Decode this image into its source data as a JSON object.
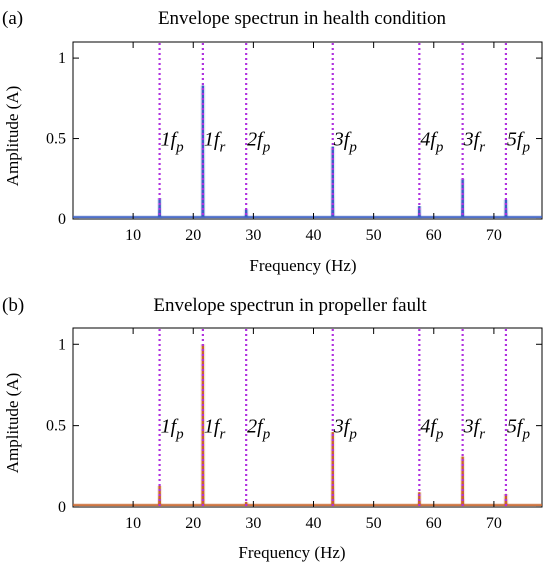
{
  "chart_data": [
    {
      "type": "line",
      "panel_label": "(a)",
      "title": "Envelope spectrun in health condition",
      "xlabel": "Frequency (Hz)",
      "ylabel": "Amplitude (A)",
      "xlim": [
        0,
        78
      ],
      "ylim": [
        0,
        1.1
      ],
      "xticks": [
        10,
        20,
        30,
        40,
        50,
        60,
        70
      ],
      "yticks": [
        0,
        0.5,
        1
      ],
      "ytick_labels": [
        "0",
        "0.5",
        "1"
      ],
      "grid": false,
      "series": [
        {
          "color": "#3a5fc4",
          "baseline": 0.012,
          "peaks": [
            {
              "x": 14.4,
              "y": 0.13
            },
            {
              "x": 21.6,
              "y": 0.83
            },
            {
              "x": 28.8,
              "y": 0.06
            },
            {
              "x": 43.2,
              "y": 0.45
            },
            {
              "x": 57.6,
              "y": 0.08
            },
            {
              "x": 64.8,
              "y": 0.25
            },
            {
              "x": 72.0,
              "y": 0.12
            }
          ]
        }
      ],
      "marker_lines": {
        "color": "#b030e0",
        "positions": [
          14.4,
          21.6,
          28.8,
          43.2,
          57.6,
          64.8,
          72.0
        ]
      },
      "annotations": [
        {
          "x": 14.4,
          "y": 0.5,
          "main": "1f",
          "sub": "p"
        },
        {
          "x": 21.6,
          "y": 0.5,
          "main": "1f",
          "sub": "r"
        },
        {
          "x": 28.8,
          "y": 0.5,
          "main": "2f",
          "sub": "p"
        },
        {
          "x": 43.2,
          "y": 0.5,
          "main": "3f",
          "sub": "p"
        },
        {
          "x": 57.6,
          "y": 0.5,
          "main": "4f",
          "sub": "p"
        },
        {
          "x": 64.8,
          "y": 0.5,
          "main": "3f",
          "sub": "r"
        },
        {
          "x": 72.0,
          "y": 0.5,
          "main": "5f",
          "sub": "p"
        }
      ]
    },
    {
      "type": "line",
      "panel_label": "(b)",
      "title": "Envelope spectrun in propeller fault",
      "xlabel": "Frequency (Hz)",
      "ylabel": "Amplitude (A)",
      "xlim": [
        0,
        78
      ],
      "ylim": [
        0,
        1.1
      ],
      "xticks": [
        10,
        20,
        30,
        40,
        50,
        60,
        70
      ],
      "yticks": [
        0,
        0.5,
        1
      ],
      "ytick_labels": [
        "0",
        "0.5",
        "1"
      ],
      "grid": false,
      "series": [
        {
          "color": "#c8642a",
          "baseline": 0.012,
          "peaks": [
            {
              "x": 14.4,
              "y": 0.13
            },
            {
              "x": 21.6,
              "y": 1.0
            },
            {
              "x": 28.8,
              "y": 0.03
            },
            {
              "x": 43.2,
              "y": 0.46
            },
            {
              "x": 57.6,
              "y": 0.09
            },
            {
              "x": 64.8,
              "y": 0.31
            },
            {
              "x": 72.0,
              "y": 0.08
            }
          ]
        }
      ],
      "marker_lines": {
        "color": "#b030e0",
        "positions": [
          14.4,
          21.6,
          28.8,
          43.2,
          57.6,
          64.8,
          72.0
        ]
      },
      "annotations": [
        {
          "x": 14.4,
          "y": 0.5,
          "main": "1f",
          "sub": "p"
        },
        {
          "x": 21.6,
          "y": 0.5,
          "main": "1f",
          "sub": "r"
        },
        {
          "x": 28.8,
          "y": 0.5,
          "main": "2f",
          "sub": "p"
        },
        {
          "x": 43.2,
          "y": 0.5,
          "main": "3f",
          "sub": "p"
        },
        {
          "x": 57.6,
          "y": 0.5,
          "main": "4f",
          "sub": "p"
        },
        {
          "x": 64.8,
          "y": 0.5,
          "main": "3f",
          "sub": "r"
        },
        {
          "x": 72.0,
          "y": 0.5,
          "main": "5f",
          "sub": "p"
        }
      ]
    }
  ]
}
